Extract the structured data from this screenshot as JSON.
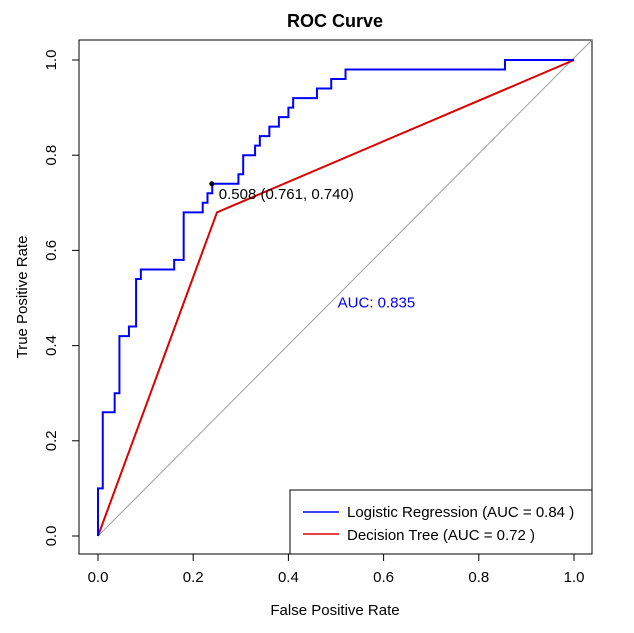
{
  "chart_data": {
    "type": "line",
    "title": "ROC Curve",
    "xlabel": "False Positive Rate",
    "ylabel": "True Positive Rate",
    "xlim": [
      0,
      1
    ],
    "ylim": [
      0,
      1
    ],
    "xticks": [
      "0.0",
      "0.2",
      "0.4",
      "0.6",
      "0.8",
      "1.0"
    ],
    "yticks": [
      "0.0",
      "0.2",
      "0.4",
      "0.6",
      "0.8",
      "1.0"
    ],
    "grid": false,
    "legend_position": "bottom-right",
    "series": [
      {
        "name": "Logistic Regression (AUC = 0.84 )",
        "color": "#0000ff",
        "points": [
          [
            0.0,
            0.0
          ],
          [
            0.0,
            0.1
          ],
          [
            0.01,
            0.1
          ],
          [
            0.01,
            0.26
          ],
          [
            0.035,
            0.26
          ],
          [
            0.035,
            0.3
          ],
          [
            0.045,
            0.3
          ],
          [
            0.045,
            0.42
          ],
          [
            0.065,
            0.42
          ],
          [
            0.065,
            0.44
          ],
          [
            0.08,
            0.44
          ],
          [
            0.08,
            0.54
          ],
          [
            0.09,
            0.54
          ],
          [
            0.09,
            0.56
          ],
          [
            0.16,
            0.56
          ],
          [
            0.16,
            0.58
          ],
          [
            0.18,
            0.58
          ],
          [
            0.18,
            0.68
          ],
          [
            0.22,
            0.68
          ],
          [
            0.22,
            0.7
          ],
          [
            0.23,
            0.7
          ],
          [
            0.23,
            0.72
          ],
          [
            0.24,
            0.72
          ],
          [
            0.24,
            0.74
          ],
          [
            0.295,
            0.74
          ],
          [
            0.295,
            0.76
          ],
          [
            0.305,
            0.76
          ],
          [
            0.305,
            0.8
          ],
          [
            0.33,
            0.8
          ],
          [
            0.33,
            0.82
          ],
          [
            0.34,
            0.82
          ],
          [
            0.34,
            0.84
          ],
          [
            0.36,
            0.84
          ],
          [
            0.36,
            0.86
          ],
          [
            0.38,
            0.86
          ],
          [
            0.38,
            0.88
          ],
          [
            0.4,
            0.88
          ],
          [
            0.4,
            0.9
          ],
          [
            0.41,
            0.9
          ],
          [
            0.41,
            0.92
          ],
          [
            0.46,
            0.92
          ],
          [
            0.46,
            0.94
          ],
          [
            0.49,
            0.94
          ],
          [
            0.49,
            0.96
          ],
          [
            0.52,
            0.96
          ],
          [
            0.52,
            0.98
          ],
          [
            0.855,
            0.98
          ],
          [
            0.855,
            1.0
          ],
          [
            1.0,
            1.0
          ]
        ]
      },
      {
        "name": "Decision Tree (AUC = 0.72 )",
        "color": "#dd0000",
        "points": [
          [
            0.0,
            0.0
          ],
          [
            0.25,
            0.68
          ],
          [
            1.0,
            1.0
          ]
        ]
      }
    ],
    "reference_line": {
      "points": [
        [
          0,
          0
        ],
        [
          1,
          1
        ]
      ],
      "color": "#a0a0a0"
    },
    "threshold_point": {
      "x": 0.239,
      "y": 0.74,
      "label": "0.508 (0.761, 0.740)"
    },
    "auc_annotation": {
      "x": 0.585,
      "y": 0.48,
      "label": "AUC: 0.835",
      "color": "#0000ff"
    }
  }
}
